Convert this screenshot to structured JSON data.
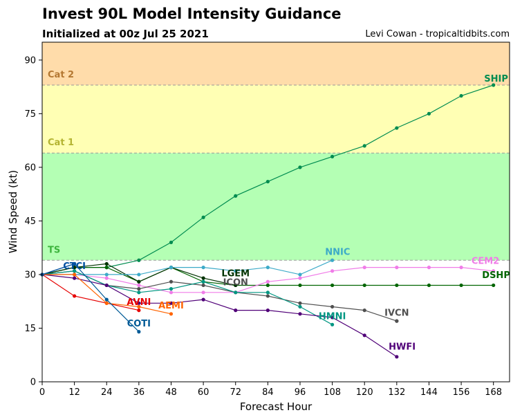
{
  "header": {
    "title": "Invest 90L Model Intensity Guidance",
    "subtitle": "Initialized at 00z Jul 25 2021",
    "credit": "Levi Cowan - tropicaltidbits.com"
  },
  "chart_data": {
    "type": "line",
    "title": "Invest 90L Model Intensity Guidance",
    "subtitle": "Initialized at 00z Jul 25 2021",
    "xlabel": "Forecast Hour",
    "ylabel": "Wind Speed (kt)",
    "xlim": [
      0,
      174
    ],
    "ylim": [
      0,
      95
    ],
    "xticks": [
      0,
      12,
      24,
      36,
      48,
      60,
      72,
      84,
      96,
      108,
      120,
      132,
      144,
      156,
      168
    ],
    "yticks": [
      0,
      15,
      30,
      45,
      60,
      75,
      90
    ],
    "bands": [
      {
        "name": "TS",
        "from": 34,
        "to": 64,
        "color": "#b4ffb4",
        "label_color": "#3cb43c"
      },
      {
        "name": "Cat 1",
        "from": 64,
        "to": 83,
        "color": "#ffffb4",
        "label_color": "#b4b432"
      },
      {
        "name": "Cat 2",
        "from": 83,
        "to": 95,
        "color": "#ffdcaa",
        "label_color": "#b47832"
      }
    ],
    "series": [
      {
        "name": "SHIP",
        "color": "#008c50",
        "x": [
          0,
          12,
          24,
          36,
          48,
          60,
          72,
          84,
          96,
          108,
          120,
          132,
          144,
          156,
          168
        ],
        "y": [
          30,
          32,
          32,
          34,
          39,
          46,
          52,
          56,
          60,
          63,
          66,
          71,
          75,
          80,
          83
        ],
        "label_x": 169,
        "label_y": 84
      },
      {
        "name": "DSHP",
        "color": "#006400",
        "x": [
          0,
          12,
          24,
          36,
          48,
          60,
          72,
          84,
          96,
          108,
          120,
          132,
          144,
          156,
          168
        ],
        "y": [
          30,
          32,
          32,
          28,
          32,
          28,
          27,
          27,
          27,
          27,
          27,
          27,
          27,
          27,
          27
        ],
        "label_x": 169,
        "label_y": 29
      },
      {
        "name": "LGEM",
        "color": "#003200",
        "x": [
          0,
          12,
          24,
          36,
          48,
          60,
          72
        ],
        "y": [
          30,
          32,
          33,
          28,
          32,
          29,
          27
        ],
        "label_x": 72,
        "label_y": 29.5
      },
      {
        "name": "CEM2",
        "color": "#f07ce8",
        "x": [
          0,
          12,
          24,
          36,
          48,
          60,
          72,
          84,
          96,
          108,
          120,
          132,
          144,
          156,
          168
        ],
        "y": [
          30,
          30,
          29,
          27,
          25,
          25,
          25,
          28,
          29,
          31,
          32,
          32,
          32,
          32,
          31
        ],
        "label_x": 165,
        "label_y": 33
      },
      {
        "name": "NNIC",
        "color": "#3caac8",
        "x": [
          0,
          12,
          24,
          36,
          48,
          60,
          72,
          84,
          96,
          108
        ],
        "y": [
          30,
          30,
          30,
          30,
          32,
          32,
          31,
          32,
          30,
          34
        ],
        "label_x": 110,
        "label_y": 35.5
      },
      {
        "name": "ICON",
        "color": "#505050",
        "x": [
          0,
          12,
          24,
          36,
          48,
          60,
          72,
          84,
          96,
          108,
          120,
          132
        ],
        "y": [
          30,
          31,
          27,
          26,
          28,
          27,
          25,
          24,
          22,
          21,
          20,
          17
        ],
        "label_x": 72,
        "label_y": 27
      },
      {
        "name": "IVCN",
        "color": "#505050",
        "x": [
          132
        ],
        "y": [
          17
        ],
        "label_x": 132,
        "label_y": 18.5
      },
      {
        "name": "HMNI",
        "color": "#009682",
        "x": [
          0,
          12,
          24,
          36,
          48,
          60,
          72,
          84,
          96,
          108
        ],
        "y": [
          30,
          31,
          27,
          25,
          26,
          28,
          25,
          25,
          21,
          16
        ],
        "label_x": 108,
        "label_y": 17.5
      },
      {
        "name": "HWFI",
        "color": "#500078",
        "x": [
          0,
          12,
          24,
          36,
          48,
          60,
          72,
          84,
          96,
          108,
          120,
          132
        ],
        "y": [
          30,
          29,
          27,
          22,
          22,
          23,
          20,
          20,
          19,
          18,
          13,
          7
        ],
        "label_x": 134,
        "label_y": 9
      },
      {
        "name": "AVNI",
        "color": "#e60000",
        "x": [
          0,
          12,
          24,
          36
        ],
        "y": [
          30,
          24,
          22,
          20
        ],
        "label_x": 36,
        "label_y": 21.5
      },
      {
        "name": "AEMI",
        "color": "#ff6400",
        "x": [
          0,
          12,
          24,
          36,
          48
        ],
        "y": [
          30,
          30,
          22,
          21,
          19
        ],
        "label_x": 48,
        "label_y": 20.5
      },
      {
        "name": "COTI",
        "color": "#005a96",
        "x": [
          0,
          12,
          24,
          36
        ],
        "y": [
          30,
          33,
          23,
          14
        ],
        "label_x": 36,
        "label_y": 15.5
      },
      {
        "name": "CTCI",
        "color": "#0050a0",
        "x": [
          0,
          12
        ],
        "y": [
          30,
          33
        ],
        "label_x": 12,
        "label_y": 31.5
      }
    ]
  }
}
